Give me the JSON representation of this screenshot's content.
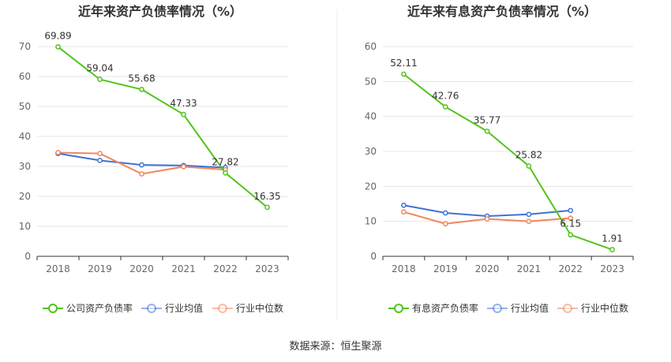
{
  "source_text": "数据来源：恒生聚源",
  "chart_data": [
    {
      "type": "line",
      "title": "近年来资产负债率情况（%）",
      "xlabel": "",
      "ylabel": "",
      "categories": [
        "2018",
        "2019",
        "2020",
        "2021",
        "2022",
        "2023"
      ],
      "ylim": [
        0,
        70
      ],
      "yticks": [
        0,
        10,
        20,
        30,
        40,
        50,
        60,
        70
      ],
      "grid": true,
      "legend_position": "bottom",
      "series": [
        {
          "name": "公司资产负债率",
          "color": "#52c41a",
          "values": [
            69.89,
            59.04,
            55.68,
            47.33,
            27.82,
            16.35
          ],
          "labels": [
            "69.89",
            "59.04",
            "55.68",
            "47.33",
            "27.82",
            "16.35"
          ]
        },
        {
          "name": "行业均值",
          "color": "#3f72d6",
          "values": [
            34.3,
            32.0,
            30.5,
            30.3,
            29.6,
            null
          ]
        },
        {
          "name": "行业中位数",
          "color": "#f0875a",
          "values": [
            34.6,
            34.3,
            27.5,
            29.9,
            28.9,
            null
          ]
        }
      ]
    },
    {
      "type": "line",
      "title": "近年来有息资产负债率情况（%）",
      "xlabel": "",
      "ylabel": "",
      "categories": [
        "2018",
        "2019",
        "2020",
        "2021",
        "2022",
        "2023"
      ],
      "ylim": [
        0,
        60
      ],
      "yticks": [
        0,
        10,
        20,
        30,
        40,
        50,
        60
      ],
      "grid": true,
      "legend_position": "bottom",
      "series": [
        {
          "name": "有息资产负债率",
          "color": "#52c41a",
          "values": [
            52.11,
            42.76,
            35.77,
            25.82,
            6.15,
            1.91
          ],
          "labels": [
            "52.11",
            "42.76",
            "35.77",
            "25.82",
            "6.15",
            "1.91"
          ]
        },
        {
          "name": "行业均值",
          "color": "#3f72d6",
          "values": [
            14.6,
            12.4,
            11.5,
            12.0,
            13.1,
            null
          ]
        },
        {
          "name": "行业中位数",
          "color": "#f0875a",
          "values": [
            12.7,
            9.3,
            10.7,
            10.0,
            10.9,
            null
          ]
        }
      ]
    }
  ]
}
